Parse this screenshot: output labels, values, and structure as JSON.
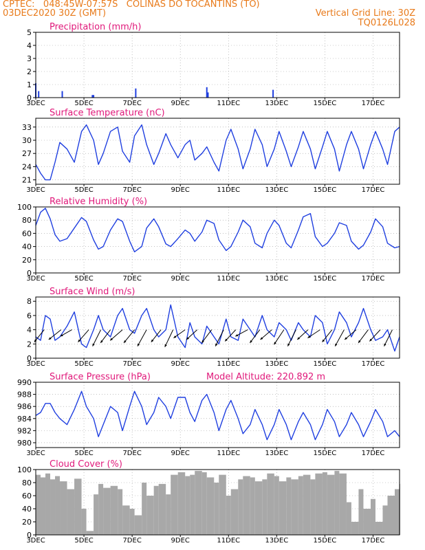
{
  "header": {
    "line1": "CPTEC:   048:45W-07:57S   COLINAS DO TOCANTINS (TO)",
    "line2_left": "03DEC2020 30Z (GMT)",
    "line2_right": "Vertical Grid Line: 30Z",
    "line3_right": "TQ0126L028"
  },
  "model_altitude": "Model Altitude: 220.892 m",
  "x_ticks": [
    "3DEC",
    "5DEC",
    "7DEC",
    "9DEC",
    "11DEC",
    "13DEC",
    "15DEC",
    "17DEC"
  ],
  "x_ticks_day": [
    3,
    5,
    7,
    9,
    11,
    13,
    15,
    17
  ],
  "x_range_days": [
    3,
    18.1
  ],
  "colors": {
    "series": "#1f3fe0",
    "title": "#e0187a",
    "header": "#e87a1a",
    "cloud": "#a8a8a8",
    "grid": "#9a9a9a"
  },
  "chart_data": [
    {
      "type": "bar",
      "title": "Precipitation (mm/h)",
      "ylim": [
        0,
        5
      ],
      "yticks": [
        0,
        1,
        2,
        3,
        4,
        5
      ],
      "grid": true,
      "x_day": [
        3.0,
        3.12,
        4.1,
        5.35,
        5.4,
        7.15,
        10.1,
        10.15,
        12.85
      ],
      "values": [
        1.1,
        0.5,
        0.5,
        0.2,
        0.2,
        0.7,
        0.8,
        0.4,
        0.6
      ]
    },
    {
      "type": "line",
      "title": "Surface Temperature (nC)",
      "ylim": [
        20,
        35
      ],
      "yticks": [
        21,
        24,
        27,
        30,
        33
      ],
      "grid": true,
      "x_day": [
        3.0,
        3.2,
        3.4,
        3.6,
        3.8,
        4.0,
        4.3,
        4.6,
        4.9,
        5.1,
        5.4,
        5.6,
        5.8,
        6.1,
        6.4,
        6.6,
        6.9,
        7.1,
        7.4,
        7.6,
        7.9,
        8.1,
        8.4,
        8.6,
        8.9,
        9.2,
        9.4,
        9.6,
        9.9,
        10.1,
        10.4,
        10.6,
        10.9,
        11.1,
        11.4,
        11.6,
        11.9,
        12.1,
        12.4,
        12.6,
        12.9,
        13.1,
        13.4,
        13.6,
        13.9,
        14.1,
        14.4,
        14.6,
        14.9,
        15.1,
        15.4,
        15.6,
        15.9,
        16.1,
        16.4,
        16.6,
        16.9,
        17.1,
        17.4,
        17.6,
        17.9,
        18.1
      ],
      "values": [
        24.5,
        22.5,
        21,
        21,
        25,
        29.5,
        28,
        25,
        32,
        33.5,
        30,
        24.5,
        27,
        32,
        33,
        27.5,
        25,
        31,
        33.5,
        29,
        24.5,
        27,
        31.5,
        29,
        26,
        29,
        30,
        25.5,
        27,
        28.5,
        25,
        23,
        30,
        32.5,
        28,
        23.5,
        28,
        32.5,
        29,
        24,
        28,
        32,
        27.5,
        24,
        28.5,
        32,
        28,
        23.5,
        28.5,
        32,
        28,
        23,
        29,
        32,
        28,
        23.5,
        29,
        32,
        28,
        24.5,
        32,
        33
      ]
    },
    {
      "type": "line",
      "title": "Relative Humidity (%)",
      "ylim": [
        0,
        100
      ],
      "yticks": [
        0,
        20,
        40,
        60,
        80,
        100
      ],
      "grid": true,
      "x_day": [
        3.0,
        3.2,
        3.4,
        3.6,
        3.8,
        4.0,
        4.3,
        4.6,
        4.9,
        5.1,
        5.4,
        5.6,
        5.8,
        6.1,
        6.4,
        6.6,
        6.9,
        7.1,
        7.4,
        7.6,
        7.9,
        8.1,
        8.4,
        8.6,
        8.9,
        9.2,
        9.4,
        9.6,
        9.9,
        10.1,
        10.4,
        10.6,
        10.9,
        11.1,
        11.4,
        11.6,
        11.9,
        12.1,
        12.4,
        12.6,
        12.9,
        13.1,
        13.4,
        13.6,
        13.9,
        14.1,
        14.4,
        14.6,
        14.9,
        15.1,
        15.4,
        15.6,
        15.9,
        16.1,
        16.4,
        16.6,
        16.9,
        17.1,
        17.4,
        17.6,
        17.9,
        18.1
      ],
      "values": [
        72,
        92,
        98,
        82,
        58,
        48,
        52,
        68,
        84,
        78,
        50,
        36,
        40,
        65,
        82,
        78,
        48,
        32,
        40,
        68,
        82,
        70,
        44,
        40,
        52,
        65,
        60,
        48,
        62,
        80,
        75,
        50,
        34,
        40,
        62,
        80,
        70,
        45,
        38,
        60,
        80,
        72,
        45,
        38,
        65,
        85,
        90,
        55,
        40,
        45,
        60,
        76,
        72,
        48,
        36,
        42,
        62,
        82,
        70,
        45,
        38,
        40
      ]
    },
    {
      "type": "line",
      "title": "Surface Wind (m/s)",
      "ylim": [
        0,
        8.6
      ],
      "yticks": [
        0,
        2,
        4,
        6,
        8
      ],
      "grid": true,
      "x_day": [
        3.0,
        3.2,
        3.4,
        3.6,
        3.8,
        4.0,
        4.3,
        4.6,
        4.9,
        5.1,
        5.4,
        5.6,
        5.8,
        6.1,
        6.4,
        6.6,
        6.9,
        7.1,
        7.4,
        7.6,
        7.9,
        8.1,
        8.4,
        8.6,
        8.9,
        9.2,
        9.4,
        9.6,
        9.9,
        10.1,
        10.4,
        10.6,
        10.9,
        11.1,
        11.4,
        11.6,
        11.9,
        12.1,
        12.4,
        12.6,
        12.9,
        13.1,
        13.4,
        13.6,
        13.9,
        14.1,
        14.4,
        14.6,
        14.9,
        15.1,
        15.4,
        15.6,
        15.9,
        16.1,
        16.4,
        16.6,
        16.9,
        17.1,
        17.4,
        17.6,
        17.9,
        18.1
      ],
      "values": [
        3,
        2.5,
        6,
        5.5,
        2.5,
        3,
        4.5,
        6.5,
        2,
        1.5,
        4,
        6,
        4,
        3,
        6,
        7,
        4,
        3.5,
        6,
        7,
        4,
        3,
        4,
        7.5,
        3,
        1.5,
        5,
        3,
        2,
        4.5,
        3,
        2,
        5.5,
        3,
        2.5,
        5.5,
        4,
        3,
        6,
        4,
        3,
        5,
        4,
        2.5,
        5,
        4,
        3,
        6,
        5,
        2,
        4,
        6.5,
        5,
        3,
        5,
        7,
        4,
        2.5,
        3,
        4,
        1,
        3
      ]
    },
    {
      "type": "line",
      "title": "Surface Pressure (hPa)",
      "ylim": [
        979.2,
        990
      ],
      "yticks": [
        980,
        982,
        984,
        986,
        988,
        990
      ],
      "grid": true,
      "x_day": [
        3.0,
        3.2,
        3.4,
        3.6,
        3.8,
        4.0,
        4.3,
        4.6,
        4.9,
        5.1,
        5.4,
        5.6,
        5.8,
        6.1,
        6.4,
        6.6,
        6.9,
        7.1,
        7.4,
        7.6,
        7.9,
        8.1,
        8.4,
        8.6,
        8.9,
        9.2,
        9.4,
        9.6,
        9.9,
        10.1,
        10.4,
        10.6,
        10.9,
        11.1,
        11.4,
        11.6,
        11.9,
        12.1,
        12.4,
        12.6,
        12.9,
        13.1,
        13.4,
        13.6,
        13.9,
        14.1,
        14.4,
        14.6,
        14.9,
        15.1,
        15.4,
        15.6,
        15.9,
        16.1,
        16.4,
        16.6,
        16.9,
        17.1,
        17.4,
        17.6,
        17.9,
        18.1
      ],
      "values": [
        984.5,
        985,
        986.5,
        986.5,
        985,
        984,
        983,
        985.5,
        988.5,
        986,
        984,
        981,
        983,
        986,
        985,
        982,
        986,
        988.5,
        986,
        983,
        985,
        987.5,
        986,
        984,
        987.5,
        987.5,
        985,
        983.5,
        987,
        988,
        985,
        982,
        985.5,
        987,
        984,
        981.5,
        983,
        985.5,
        983,
        980.5,
        983,
        985.5,
        983,
        980.5,
        983.5,
        985,
        983,
        980.5,
        983,
        985.5,
        983.5,
        981,
        983,
        985,
        983,
        981,
        983.5,
        985.5,
        983.5,
        981,
        982,
        981
      ]
    },
    {
      "type": "area",
      "title": "Cloud Cover (%)",
      "ylim": [
        0,
        100
      ],
      "yticks": [
        0,
        20,
        40,
        60,
        80,
        100
      ],
      "grid": true,
      "x_day": [
        3.0,
        3.2,
        3.4,
        3.6,
        3.8,
        4.0,
        4.3,
        4.6,
        4.9,
        5.1,
        5.4,
        5.6,
        5.8,
        6.1,
        6.4,
        6.6,
        6.9,
        7.1,
        7.4,
        7.6,
        7.9,
        8.1,
        8.4,
        8.6,
        8.9,
        9.2,
        9.4,
        9.6,
        9.9,
        10.1,
        10.4,
        10.6,
        10.9,
        11.1,
        11.4,
        11.6,
        11.9,
        12.1,
        12.4,
        12.6,
        12.9,
        13.1,
        13.4,
        13.6,
        13.9,
        14.1,
        14.4,
        14.6,
        14.9,
        15.1,
        15.4,
        15.6,
        15.9,
        16.1,
        16.4,
        16.6,
        16.9,
        17.1,
        17.4,
        17.6,
        17.9,
        18.1
      ],
      "values": [
        92,
        88,
        94,
        85,
        90,
        82,
        70,
        86,
        40,
        6,
        62,
        78,
        72,
        75,
        70,
        45,
        40,
        30,
        80,
        60,
        75,
        78,
        62,
        92,
        96,
        90,
        92,
        98,
        96,
        88,
        80,
        92,
        60,
        70,
        85,
        90,
        88,
        82,
        85,
        94,
        90,
        82,
        88,
        85,
        90,
        92,
        85,
        94,
        96,
        92,
        98,
        94,
        50,
        20,
        70,
        40,
        55,
        20,
        45,
        60,
        70,
        78
      ]
    }
  ],
  "wind_vectors": {
    "note": "Surface wind direction arrows",
    "x_day": [
      3.35,
      4.05,
      4.5,
      5.2,
      5.7,
      6.1,
      6.6,
      7.1,
      7.6,
      8.2,
      8.7,
      9.2,
      9.7,
      10.3,
      10.8,
      11.3,
      11.8,
      12.3,
      12.8,
      13.3,
      13.8,
      14.3,
      14.8,
      15.3,
      15.8,
      16.3,
      16.8,
      17.3,
      17.8
    ],
    "u": [
      -1.2,
      -1.5,
      -1.4,
      -1.3,
      -1.0,
      -1.2,
      -1.5,
      -1.3,
      -1.1,
      -1.2,
      -1.0,
      -1.4,
      -1.3,
      -1.2,
      -1.0,
      -1.3,
      -1.5,
      -1.2,
      -1.4,
      -1.2,
      -1.0,
      -1.3,
      -1.5,
      -1.2,
      -1.1,
      -1.4,
      -1.2,
      -1.3,
      -1.0
    ],
    "v": [
      -1.5,
      -1.2,
      -0.8,
      -1.5,
      -2.0,
      -1.6,
      -1.3,
      -1.6,
      -2.0,
      -1.5,
      -2.1,
      -1.0,
      -1.2,
      -1.6,
      -2.0,
      -1.4,
      -0.8,
      -1.6,
      -1.2,
      -1.8,
      -2.0,
      -1.2,
      -1.0,
      -1.5,
      -2.0,
      -1.2,
      -1.6,
      -1.4,
      -2.0
    ]
  }
}
